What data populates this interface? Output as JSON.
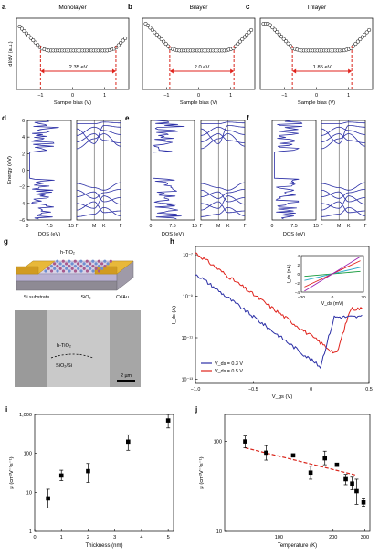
{
  "colors": {
    "stroke": "#000000",
    "blue": "#2b2fa6",
    "red": "#e0231c",
    "green": "#169b3c",
    "purple": "#9b1fb0",
    "cyan": "#27a7c8",
    "gold": "#e8b83a",
    "dashed_red": "#d9261c"
  },
  "panel_labels": [
    "a",
    "b",
    "c",
    "d",
    "e",
    "f",
    "g",
    "h",
    "i",
    "j"
  ],
  "row_a": {
    "titles": [
      "Monolayer",
      "Bilayer",
      "Trilayer"
    ],
    "ylabel": "dI/dV (a.u.)",
    "xlabel": "Sample bias (V)",
    "xticks": [
      "−1",
      "0",
      "1"
    ],
    "gaps": [
      "2.35 eV",
      "2.0 eV",
      "1.85 eV"
    ],
    "gap_edges": [
      [
        -1.0,
        1.35
      ],
      [
        -0.9,
        1.1
      ],
      [
        -0.75,
        1.1
      ]
    ]
  },
  "row_d": {
    "ylabel": "Energy (eV)",
    "yticks": [
      "6",
      "4",
      "2",
      "0",
      "−2",
      "−4",
      "−6"
    ],
    "dos_xlabel": "DOS (eV)",
    "dos_xticks": [
      "0",
      "7.5",
      "15"
    ],
    "band_xticks": [
      "Γ",
      "M",
      "K",
      "Γ"
    ]
  },
  "panel_g": {
    "device_labels": [
      "h-TiO₂",
      "Si substrate",
      "SiO₂",
      "Cr/Au"
    ],
    "sem_labels": [
      "h-TiO₂",
      "SiO₂/Si"
    ],
    "scale_bar": "2 µm"
  },
  "panel_h": {
    "ylabel": "I_ds (A)",
    "xlabel": "V_gs (V)",
    "yticks": [
      "10⁻⁷",
      "10⁻⁹",
      "10⁻¹¹",
      "10⁻¹³"
    ],
    "xticks": [
      "−1.0",
      "−0.5",
      "0",
      "0.5"
    ],
    "legend": [
      "V_ds = 0.3 V",
      "V_ds = 0.5 V"
    ],
    "inset": {
      "ylabel": "I_ds (nA)",
      "xlabel": "V_ds (mV)",
      "xticks": [
        "−20",
        "0",
        "20"
      ],
      "yticks": [
        "4",
        "2",
        "0",
        "−2",
        "−4"
      ]
    }
  },
  "chart_data": [
    {
      "panel": "i",
      "type": "scatter",
      "xlabel": "Thickness (nm)",
      "ylabel": "μ (cm²V⁻¹s⁻¹)",
      "xlim": [
        0,
        5.2
      ],
      "ylim_log": [
        1,
        1000
      ],
      "xticks": [
        "0",
        "1",
        "2",
        "3",
        "4",
        "5"
      ],
      "yticks": [
        "1",
        "10",
        "100",
        "1,000"
      ],
      "x": [
        0.5,
        1.0,
        2.0,
        3.5,
        5.0
      ],
      "y": [
        7,
        27,
        35,
        200,
        700
      ],
      "err_low": [
        4,
        20,
        18,
        120,
        450
      ],
      "err_high": [
        12,
        37,
        55,
        300,
        1000
      ]
    },
    {
      "panel": "j",
      "type": "scatter",
      "xlabel": "Temperature (K)",
      "ylabel": "μ (cm²V⁻¹s⁻¹)",
      "xlim_log": [
        50,
        320
      ],
      "ylim_log": [
        10,
        200
      ],
      "xticks": [
        "100",
        "200",
        "300"
      ],
      "yticks": [
        "10",
        "100"
      ],
      "x": [
        65,
        85,
        120,
        150,
        180,
        210,
        235,
        255,
        270,
        295
      ],
      "y": [
        100,
        75,
        70,
        45,
        65,
        55,
        38,
        34,
        28,
        21
      ],
      "err_low": [
        85,
        62,
        68,
        38,
        55,
        53,
        33,
        29,
        20,
        19
      ],
      "err_high": [
        115,
        90,
        72,
        53,
        78,
        57,
        43,
        40,
        38,
        23
      ],
      "fit_line": {
        "x": [
          65,
          270
        ],
        "y": [
          85,
          42
        ]
      }
    }
  ]
}
